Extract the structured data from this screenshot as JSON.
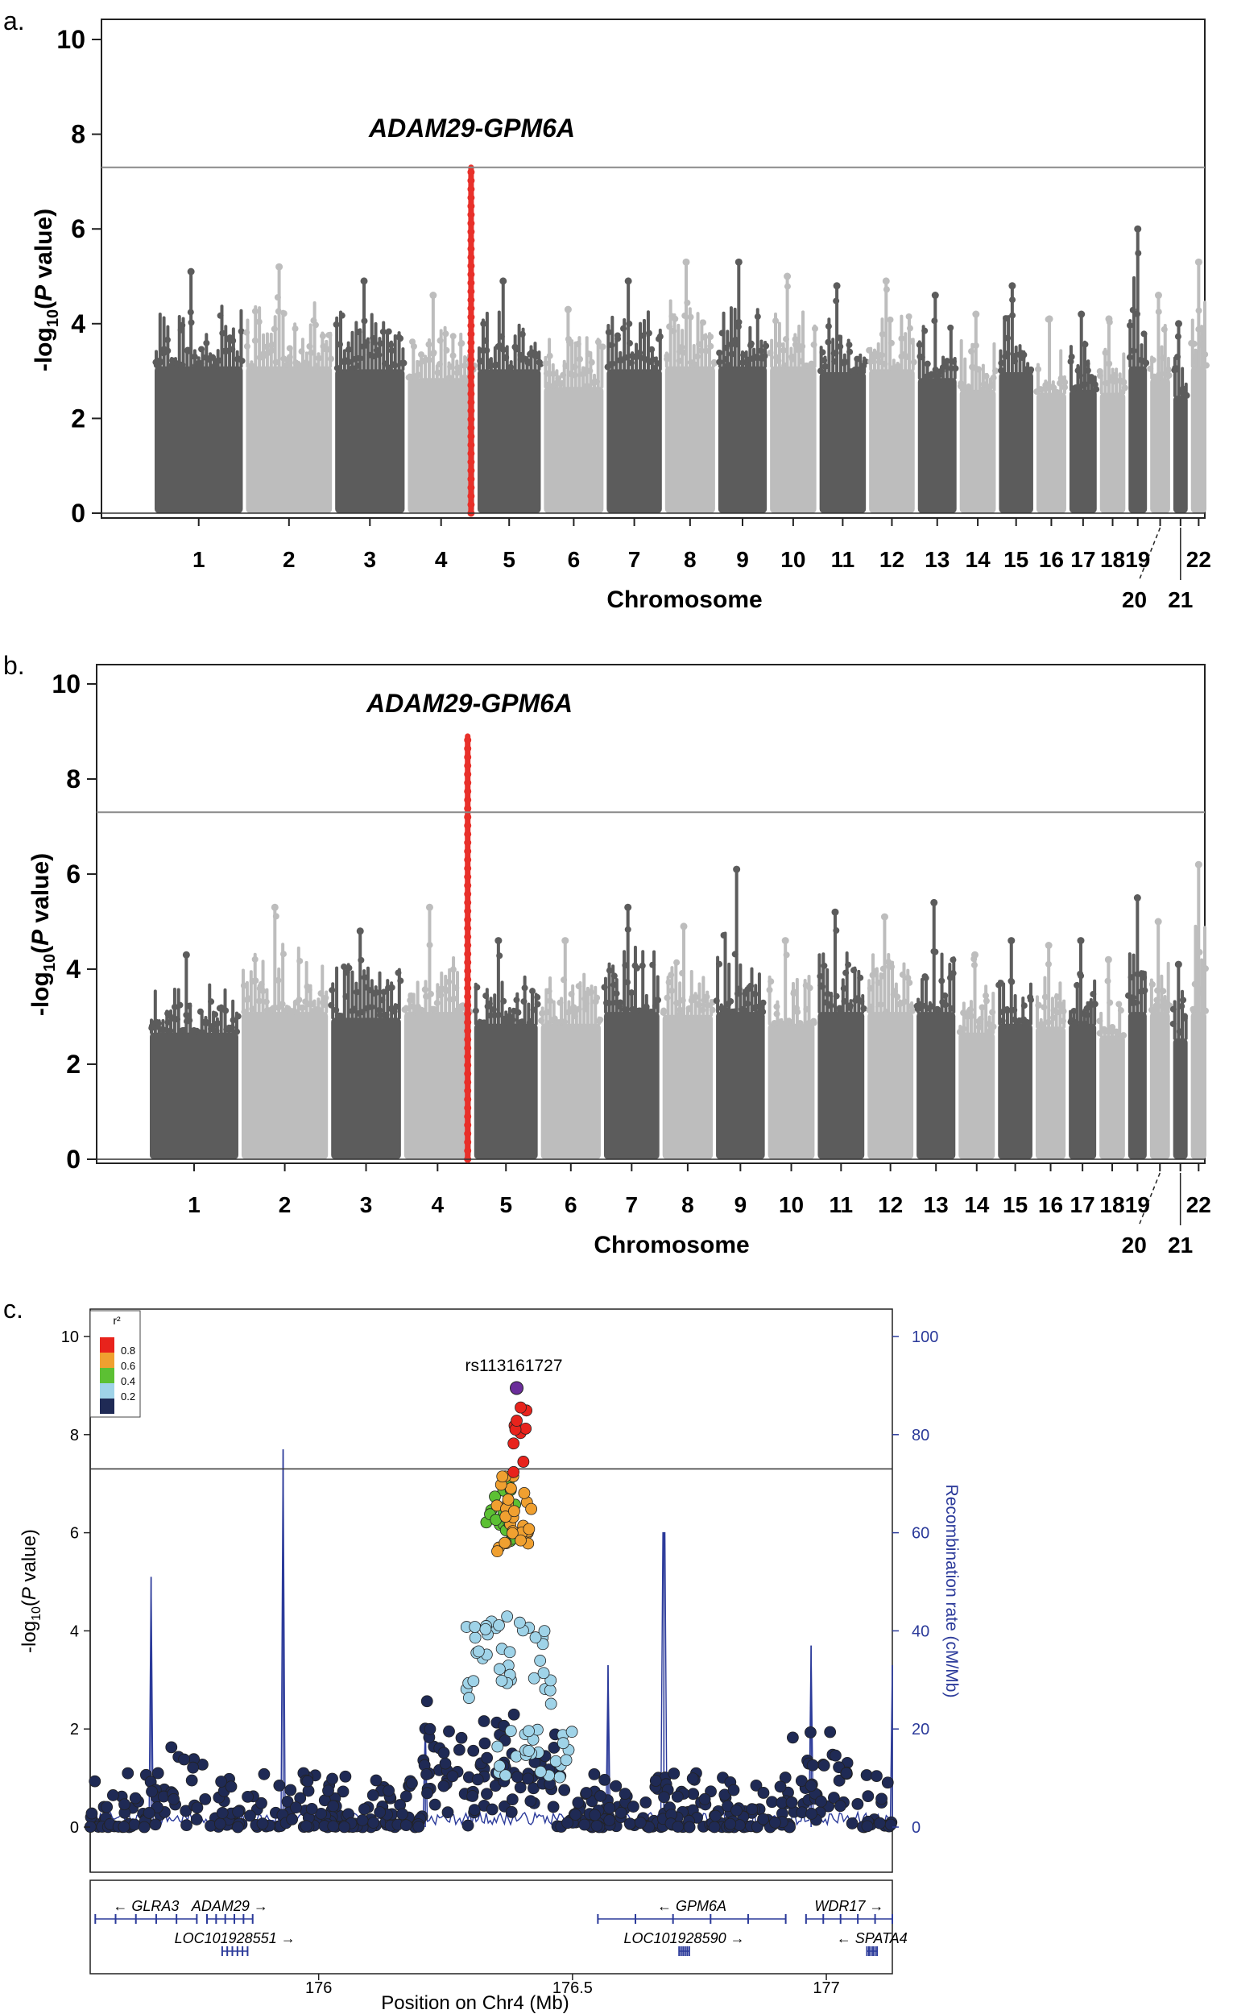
{
  "chart_data": [
    {
      "type": "scatter",
      "subtype": "manhattan",
      "panel_label": "a.",
      "xlabel": "Chromosome",
      "ylabel": "-log10(P value)",
      "ylim": [
        0,
        10
      ],
      "yticks": [
        0,
        2,
        4,
        6,
        8,
        10
      ],
      "significance_line": 7.3,
      "annotation": "ADAM29-GPM6A",
      "highlight_color": "#e8302a",
      "colors": [
        "#5c5c5c",
        "#bdbdbd"
      ],
      "chromosomes": [
        {
          "label": "1",
          "peak": 5.1
        },
        {
          "label": "2",
          "peak": 5.2
        },
        {
          "label": "3",
          "peak": 4.9
        },
        {
          "label": "4",
          "peak": 4.6,
          "highlight_peak": 7.3
        },
        {
          "label": "5",
          "peak": 4.9
        },
        {
          "label": "6",
          "peak": 4.3
        },
        {
          "label": "7",
          "peak": 4.9
        },
        {
          "label": "8",
          "peak": 5.3
        },
        {
          "label": "9",
          "peak": 5.3
        },
        {
          "label": "10",
          "peak": 5.0
        },
        {
          "label": "11",
          "peak": 4.8
        },
        {
          "label": "12",
          "peak": 4.9
        },
        {
          "label": "13",
          "peak": 4.6
        },
        {
          "label": "14",
          "peak": 4.2
        },
        {
          "label": "15",
          "peak": 4.8
        },
        {
          "label": "16",
          "peak": 4.1
        },
        {
          "label": "17",
          "peak": 4.2
        },
        {
          "label": "18",
          "peak": 4.1
        },
        {
          "label": "19",
          "peak": 6.0
        },
        {
          "label": "20",
          "peak": 4.6
        },
        {
          "label": "21",
          "peak": 4.0
        },
        {
          "label": "22",
          "peak": 5.3
        }
      ]
    },
    {
      "type": "scatter",
      "subtype": "manhattan",
      "panel_label": "b.",
      "xlabel": "Chromosome",
      "ylabel": "-log10(P value)",
      "ylim": [
        0,
        10
      ],
      "yticks": [
        0,
        2,
        4,
        6,
        8,
        10
      ],
      "significance_line": 7.3,
      "annotation": "ADAM29-GPM6A",
      "highlight_color": "#e8302a",
      "colors": [
        "#5c5c5c",
        "#bdbdbd"
      ],
      "chromosomes": [
        {
          "label": "1",
          "peak": 4.3
        },
        {
          "label": "2",
          "peak": 5.3
        },
        {
          "label": "3",
          "peak": 4.8
        },
        {
          "label": "4",
          "peak": 5.3,
          "highlight_peak": 8.9
        },
        {
          "label": "5",
          "peak": 4.6
        },
        {
          "label": "6",
          "peak": 4.6
        },
        {
          "label": "7",
          "peak": 5.3
        },
        {
          "label": "8",
          "peak": 4.9
        },
        {
          "label": "9",
          "peak": 6.1
        },
        {
          "label": "10",
          "peak": 4.6
        },
        {
          "label": "11",
          "peak": 5.2
        },
        {
          "label": "12",
          "peak": 5.1
        },
        {
          "label": "13",
          "peak": 5.4
        },
        {
          "label": "14",
          "peak": 4.3
        },
        {
          "label": "15",
          "peak": 4.6
        },
        {
          "label": "16",
          "peak": 4.5
        },
        {
          "label": "17",
          "peak": 4.6
        },
        {
          "label": "18",
          "peak": 4.2
        },
        {
          "label": "19",
          "peak": 5.5
        },
        {
          "label": "20",
          "peak": 5.0
        },
        {
          "label": "21",
          "peak": 4.1
        },
        {
          "label": "22",
          "peak": 6.2
        }
      ]
    },
    {
      "type": "scatter",
      "subtype": "regional_association",
      "panel_label": "c.",
      "xlabel": "Position on Chr4 (Mb)",
      "ylabel": "-log10(P value)",
      "y2label": "Recombination rate (cM/Mb)",
      "xlim": [
        175.55,
        177.13
      ],
      "ylim": [
        0,
        10
      ],
      "y2lim": [
        0,
        100
      ],
      "xticks": [
        176,
        176.5,
        177
      ],
      "yticks": [
        0,
        2,
        4,
        6,
        8,
        10
      ],
      "y2ticks": [
        0,
        20,
        40,
        60,
        80,
        100
      ],
      "significance_line": 7.3,
      "lead_snp": {
        "label": "rs113161727",
        "x": 176.39,
        "y": 8.95
      },
      "legend": {
        "title": "r²",
        "entries": [
          {
            "label": "0.8",
            "color": "#e8231c"
          },
          {
            "label": "0.6",
            "color": "#f0a030"
          },
          {
            "label": "0.4",
            "color": "#5cc033"
          },
          {
            "label": "0.2",
            "color": "#9fd3e8"
          },
          {
            "label": "",
            "color": "#1f2a55"
          }
        ]
      },
      "recombination_peaks": [
        {
          "x": 175.67,
          "rate": 51
        },
        {
          "x": 175.93,
          "rate": 77
        },
        {
          "x": 176.21,
          "rate": 21
        },
        {
          "x": 176.57,
          "rate": 33
        },
        {
          "x": 176.68,
          "rate": 60
        },
        {
          "x": 176.97,
          "rate": 37
        },
        {
          "x": 177.13,
          "rate": 33
        }
      ],
      "genes": [
        {
          "name": "GLRA3",
          "direction": "left",
          "row": 1,
          "start": 175.56,
          "end": 175.76
        },
        {
          "name": "ADAM29",
          "direction": "right",
          "row": 1,
          "start": 175.78,
          "end": 175.87
        },
        {
          "name": "LOC101928551",
          "direction": "right",
          "row": 2,
          "start": 175.81,
          "end": 175.86
        },
        {
          "name": "GPM6A",
          "direction": "left",
          "row": 1,
          "start": 176.55,
          "end": 176.92
        },
        {
          "name": "WDR17",
          "direction": "right",
          "row": 1,
          "start": 176.96,
          "end": 177.13
        },
        {
          "name": "LOC101928590",
          "direction": "right",
          "row": 2,
          "start": 176.71,
          "end": 176.73
        },
        {
          "name": "SPATA4",
          "direction": "left",
          "row": 2,
          "start": 177.08,
          "end": 177.1
        }
      ]
    }
  ]
}
